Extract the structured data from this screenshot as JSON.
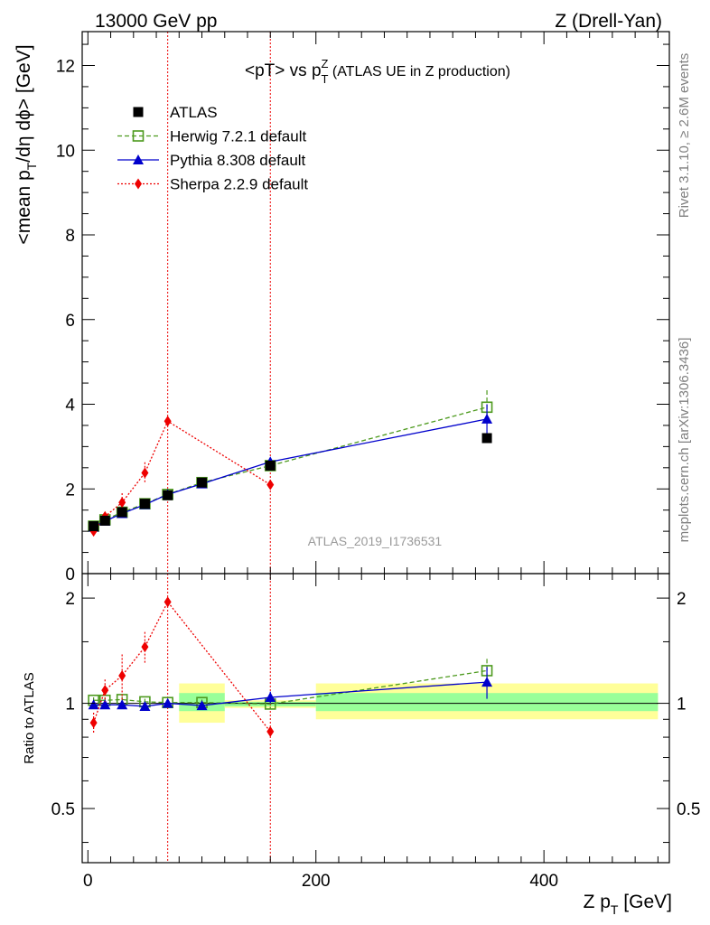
{
  "header": {
    "energy": "13000 GeV pp",
    "process": "Z (Drell-Yan)"
  },
  "side_labels": {
    "rivet": "Rivet 3.1.10, ≥ 2.6M events",
    "mcplots": "mcplots.cern.ch [arXiv:1306.3436]"
  },
  "chart_data": [
    {
      "type": "scatter",
      "title_parts": {
        "pre": "<pT> vs p",
        "sup": "Z",
        "sub": "T",
        "post": " (ATLAS UE in Z production)"
      },
      "ylabel_parts": {
        "pre": "<mean p",
        "sub": "T",
        "post": "/dη dϕ> [GeV]"
      },
      "watermark": "ATLAS_2019_I1736531",
      "xlim": [
        -5,
        510
      ],
      "ylim": [
        0,
        12.8
      ],
      "yticks": [
        0,
        2,
        4,
        6,
        8,
        10,
        12
      ],
      "ytick_labels": [
        "0",
        "2",
        "4",
        "6",
        "8",
        "10",
        "12"
      ],
      "legend_position": "top-left",
      "series": [
        {
          "name": "ATLAS",
          "color": "#000000",
          "marker": "square-filled",
          "x": [
            5,
            15,
            30,
            50,
            70,
            100,
            160,
            350
          ],
          "y": [
            1.12,
            1.25,
            1.45,
            1.65,
            1.85,
            2.15,
            2.55,
            3.2
          ]
        },
        {
          "name": "Herwig 7.2.1 default",
          "color": "#4d9a1e",
          "marker": "square-open",
          "line": "dashed",
          "x": [
            5,
            15,
            30,
            50,
            70,
            100,
            160,
            350
          ],
          "y": [
            1.12,
            1.27,
            1.45,
            1.65,
            1.87,
            2.15,
            2.55,
            3.93
          ],
          "yerr": [
            0.04,
            0.04,
            0.05,
            0.05,
            0.05,
            0.06,
            0.08,
            0.4
          ]
        },
        {
          "name": "Pythia 8.308 default",
          "color": "#0000cc",
          "marker": "triangle",
          "line": "solid",
          "x": [
            5,
            15,
            30,
            50,
            70,
            100,
            160,
            350
          ],
          "y": [
            1.1,
            1.24,
            1.42,
            1.63,
            1.87,
            2.12,
            2.64,
            3.65
          ],
          "yerr": [
            0.03,
            0.03,
            0.04,
            0.05,
            0.05,
            0.06,
            0.1,
            0.35
          ]
        },
        {
          "name": "Sherpa 2.2.9 default",
          "color": "#ee0000",
          "marker": "diamond",
          "line": "dotted",
          "x": [
            5,
            15,
            30,
            50,
            70,
            160
          ],
          "y": [
            1.0,
            1.35,
            1.68,
            2.38,
            3.6,
            2.1
          ],
          "yerr": [
            0.08,
            0.1,
            0.22,
            0.25,
            0.0,
            0.0
          ]
        }
      ],
      "vertical_lines_x": [
        70,
        160
      ]
    },
    {
      "type": "scatter",
      "ylabel": "Ratio to ATLAS",
      "xlabel_parts": {
        "pre": "Z p",
        "sub": "T",
        "post": " [GeV]"
      },
      "xlim": [
        -5,
        510
      ],
      "xticks": [
        0,
        200,
        400
      ],
      "xtick_labels": [
        "0",
        "200",
        "400"
      ],
      "ylim": [
        0.35,
        2.35
      ],
      "yticks": [
        0.5,
        1,
        2
      ],
      "ytick_labels": [
        "0.5",
        "1",
        "2"
      ],
      "y_scale": "log",
      "reference_line": 1,
      "uncertainty_bands": [
        {
          "x_range": [
            80,
            120
          ],
          "stat": [
            0.95,
            1.07
          ],
          "total": [
            0.88,
            1.14
          ]
        },
        {
          "x_range": [
            120,
            200
          ],
          "stat": [
            0.98,
            1.01
          ],
          "total": [
            0.97,
            1.02
          ]
        },
        {
          "x_range": [
            200,
            500
          ],
          "stat": [
            0.95,
            1.07
          ],
          "total": [
            0.9,
            1.14
          ]
        }
      ],
      "series": [
        {
          "name": "Herwig 7.2.1 default",
          "x": [
            5,
            15,
            30,
            50,
            70,
            100,
            160,
            350
          ],
          "y": [
            1.02,
            1.02,
            1.025,
            1.01,
            1.005,
            1.005,
            0.995,
            1.24
          ],
          "yerr": [
            0.02,
            0.02,
            0.02,
            0.02,
            0.02,
            0.02,
            0.03,
            0.1
          ]
        },
        {
          "name": "Pythia 8.308 default",
          "x": [
            5,
            15,
            30,
            50,
            70,
            100,
            160,
            350
          ],
          "y": [
            0.99,
            0.99,
            0.99,
            0.98,
            1.0,
            0.985,
            1.04,
            1.15
          ],
          "yerr": [
            0.02,
            0.02,
            0.02,
            0.02,
            0.02,
            0.02,
            0.04,
            0.12
          ]
        },
        {
          "name": "Sherpa 2.2.9 default",
          "x": [
            5,
            15,
            30,
            50,
            70,
            160
          ],
          "y": [
            0.88,
            1.09,
            1.2,
            1.45,
            1.95,
            0.83
          ],
          "yerr": [
            0.06,
            0.08,
            0.18,
            0.15,
            0.0,
            0.0
          ]
        }
      ]
    }
  ]
}
